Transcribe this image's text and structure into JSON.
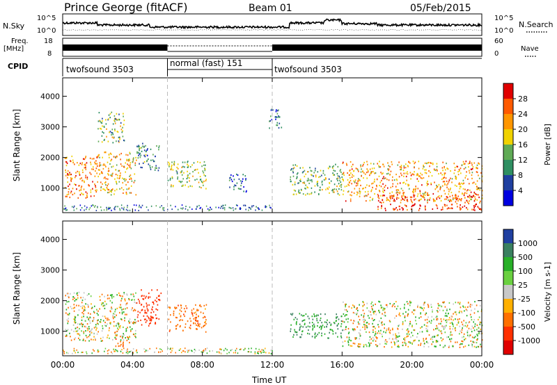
{
  "header": {
    "site": "Prince George (fitACF)",
    "beam": "Beam 01",
    "date": "05/Feb/2015"
  },
  "noise_panel": {
    "left_label": "N.Sky",
    "right_label": "N.Search",
    "left_ticks": [
      "10^5",
      "10^0"
    ],
    "right_ticks": [
      "10^5",
      "10^0"
    ]
  },
  "freq_panel": {
    "left_label_1": "Freq.",
    "left_label_2": "[MHz]",
    "right_label": "Nave",
    "left_ticks": [
      "18",
      "8"
    ],
    "right_ticks": [
      "60",
      "0"
    ]
  },
  "cpid": {
    "label": "CPID",
    "segments": [
      {
        "name": "twofsound 3503",
        "start": 0,
        "end": 6
      },
      {
        "name": "normal (fast) 151",
        "start": 6,
        "end": 12
      },
      {
        "name": "twofsound 3503",
        "start": 12,
        "end": 24
      }
    ]
  },
  "power_panel": {
    "ylabel": "Slant Range [km]",
    "cbar_label": "Power [dB]",
    "cbar_ticks": [
      "28",
      "24",
      "20",
      "16",
      "12",
      "8",
      "4"
    ],
    "colors": [
      "#e00000",
      "#ff5a00",
      "#ff9600",
      "#f0d200",
      "#5faa55",
      "#2f8f62",
      "#1f3fa0",
      "#0000e0"
    ]
  },
  "velocity_panel": {
    "ylabel": "Slant Range [km]",
    "cbar_label": "Velocity [m s-1]",
    "cbar_ticks": [
      "1000",
      "500",
      "100",
      "25",
      "-25",
      "-100",
      "-500",
      "-1000"
    ],
    "colors": [
      "#1f3fa0",
      "#3a8060",
      "#28b028",
      "#6ad040",
      "#c8c8c8",
      "#ffb000",
      "#ff7000",
      "#ff3000",
      "#e00000"
    ]
  },
  "x_axis": {
    "label": "Time UT",
    "ticks": [
      "00:00",
      "04:00",
      "08:00",
      "12:00",
      "16:00",
      "20:00",
      "00:00"
    ]
  },
  "y_ticks": [
    "4000",
    "3000",
    "2000",
    "1000"
  ],
  "chart_data": [
    {
      "type": "heatmap",
      "title": "Power",
      "ylabel": "Slant Range [km]",
      "xlabel": "Time UT",
      "xlim": [
        0,
        24
      ],
      "ylim": [
        200,
        4600
      ],
      "clim": [
        0,
        32
      ],
      "units": "dB",
      "echo_regions": [
        {
          "t0": 0.1,
          "t1": 2.0,
          "r0": 700,
          "r1": 2100,
          "power": 24
        },
        {
          "t0": 2.0,
          "t1": 4.2,
          "r0": 800,
          "r1": 2200,
          "power": 20
        },
        {
          "t0": 4.2,
          "t1": 5.5,
          "r0": 1600,
          "r1": 2500,
          "power": 10
        },
        {
          "t0": 2.0,
          "t1": 3.5,
          "r0": 2500,
          "r1": 3500,
          "power": 14
        },
        {
          "t0": 6.0,
          "t1": 8.2,
          "r0": 1000,
          "r1": 1900,
          "power": 14
        },
        {
          "t0": 9.5,
          "t1": 10.5,
          "r0": 900,
          "r1": 1500,
          "power": 6
        },
        {
          "t0": 11.8,
          "t1": 12.5,
          "r0": 2900,
          "r1": 3600,
          "power": 6
        },
        {
          "t0": 13.0,
          "t1": 16.0,
          "r0": 800,
          "r1": 1800,
          "power": 14
        },
        {
          "t0": 16.0,
          "t1": 24.0,
          "r0": 600,
          "r1": 1900,
          "power": 22
        },
        {
          "t0": 18.0,
          "t1": 24.0,
          "r0": 300,
          "r1": 800,
          "power": 28
        }
      ]
    },
    {
      "type": "heatmap",
      "title": "Velocity",
      "ylabel": "Slant Range [km]",
      "xlabel": "Time UT",
      "xlim": [
        0,
        24
      ],
      "ylim": [
        200,
        4600
      ],
      "clim": [
        -1000,
        1000
      ],
      "units": "m s-1",
      "echo_regions": [
        {
          "t0": 0.1,
          "t1": 4.2,
          "r0": 700,
          "r1": 2300,
          "velocity": 0
        },
        {
          "t0": 3.0,
          "t1": 3.8,
          "r0": 500,
          "r1": 900,
          "velocity": -200
        },
        {
          "t0": 4.2,
          "t1": 5.6,
          "r0": 1200,
          "r1": 2400,
          "velocity": -600
        },
        {
          "t0": 6.0,
          "t1": 8.2,
          "r0": 1000,
          "r1": 1900,
          "velocity": -200
        },
        {
          "t0": 13.0,
          "t1": 16.0,
          "r0": 800,
          "r1": 1600,
          "velocity": 300
        },
        {
          "t0": 16.0,
          "t1": 24.0,
          "r0": 500,
          "r1": 2000,
          "velocity": 0
        }
      ]
    }
  ]
}
